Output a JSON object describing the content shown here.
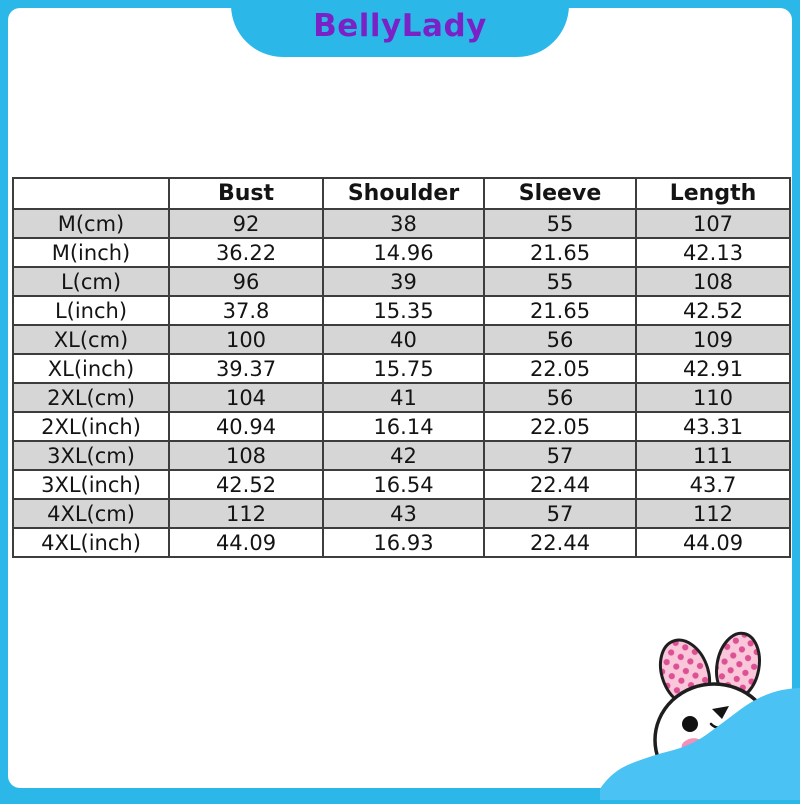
{
  "brand": {
    "name": "BellyLady"
  },
  "colors": {
    "frame_cyan": "#2BB8E9",
    "brand_text_purple": "#7B22C7",
    "row_shaded_gray": "#D6D6D6",
    "row_plain_white": "#FFFFFF",
    "table_border": "#3D3D3D",
    "bunny_blob_blue": "#4AC2F3",
    "ear_pink": "#F9C6DA",
    "ear_dot_pink": "#DE5094",
    "cheek_pink": "#F48FB5"
  },
  "size_chart": {
    "columns": [
      "",
      "Bust",
      "Shoulder",
      "Sleeve",
      "Length"
    ],
    "rows": [
      {
        "label": "M(cm)",
        "values": [
          "92",
          "38",
          "55",
          "107"
        ]
      },
      {
        "label": "M(inch)",
        "values": [
          "36.22",
          "14.96",
          "21.65",
          "42.13"
        ]
      },
      {
        "label": "L(cm)",
        "values": [
          "96",
          "39",
          "55",
          "108"
        ]
      },
      {
        "label": "L(inch)",
        "values": [
          "37.8",
          "15.35",
          "21.65",
          "42.52"
        ]
      },
      {
        "label": "XL(cm)",
        "values": [
          "100",
          "40",
          "56",
          "109"
        ]
      },
      {
        "label": "XL(inch)",
        "values": [
          "39.37",
          "15.75",
          "22.05",
          "42.91"
        ]
      },
      {
        "label": "2XL(cm)",
        "values": [
          "104",
          "41",
          "56",
          "110"
        ]
      },
      {
        "label": "2XL(inch)",
        "values": [
          "40.94",
          "16.14",
          "22.05",
          "43.31"
        ]
      },
      {
        "label": "3XL(cm)",
        "values": [
          "108",
          "42",
          "57",
          "111"
        ]
      },
      {
        "label": "3XL(inch)",
        "values": [
          "42.52",
          "16.54",
          "22.44",
          "43.7"
        ]
      },
      {
        "label": "4XL(cm)",
        "values": [
          "112",
          "43",
          "57",
          "112"
        ]
      },
      {
        "label": "4XL(inch)",
        "values": [
          "44.09",
          "16.93",
          "22.44",
          "44.09"
        ]
      }
    ]
  },
  "illustration": {
    "name": "bunny-mascot"
  }
}
